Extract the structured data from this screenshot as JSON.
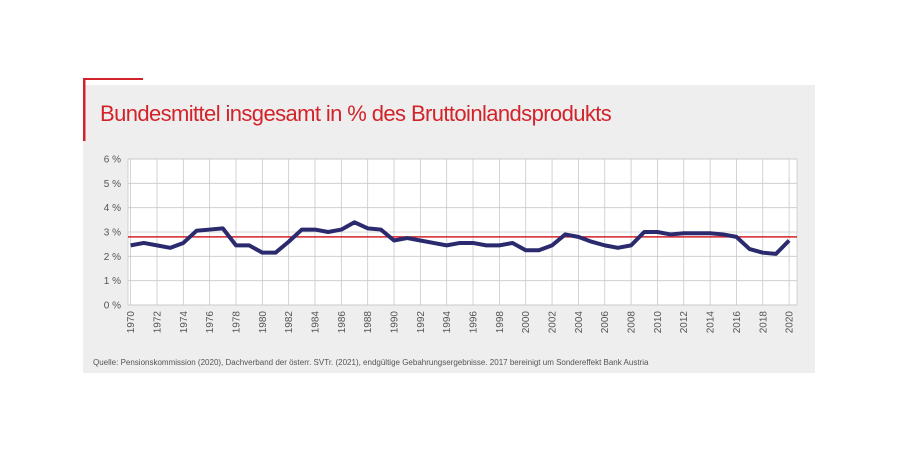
{
  "chart_data": {
    "type": "line",
    "title": "Bundesmittel insgesamt in % des Bruttoinlandsprodukts",
    "source": "Quelle: Pensionskommission (2020), Dachverband der österr. SVTr. (2021), endgültige Gebahrungsergebnisse. 2017 bereinigt um Sondereffekt Bank Austria",
    "x": [
      1970,
      1971,
      1972,
      1973,
      1974,
      1975,
      1976,
      1977,
      1978,
      1979,
      1980,
      1981,
      1982,
      1983,
      1984,
      1985,
      1986,
      1987,
      1988,
      1989,
      1990,
      1991,
      1992,
      1993,
      1994,
      1995,
      1996,
      1997,
      1998,
      1999,
      2000,
      2001,
      2002,
      2003,
      2004,
      2005,
      2006,
      2007,
      2008,
      2009,
      2010,
      2011,
      2012,
      2013,
      2014,
      2015,
      2016,
      2017,
      2018,
      2019,
      2020
    ],
    "series": [
      {
        "color": "#2b2a6e",
        "values": [
          2.45,
          2.55,
          2.45,
          2.35,
          2.55,
          3.05,
          3.1,
          3.15,
          2.45,
          2.45,
          2.15,
          2.15,
          2.6,
          3.1,
          3.1,
          3.0,
          3.1,
          3.4,
          3.15,
          3.1,
          2.65,
          2.75,
          2.65,
          2.55,
          2.45,
          2.55,
          2.55,
          2.45,
          2.45,
          2.55,
          2.25,
          2.25,
          2.45,
          2.9,
          2.8,
          2.6,
          2.45,
          2.35,
          2.45,
          3.0,
          3.0,
          2.9,
          2.95,
          2.95,
          2.95,
          2.9,
          2.8,
          2.3,
          2.15,
          2.1,
          2.65
        ]
      }
    ],
    "reference_line": {
      "value": 2.8,
      "color": "#d3232a"
    },
    "xlim": [
      1969.8,
      2020.6
    ],
    "xticks": [
      1970,
      1972,
      1974,
      1976,
      1978,
      1980,
      1982,
      1984,
      1986,
      1988,
      1990,
      1992,
      1994,
      1996,
      1998,
      2000,
      2002,
      2004,
      2006,
      2008,
      2010,
      2012,
      2014,
      2016,
      2018,
      2020
    ],
    "ylim": [
      0,
      6
    ],
    "yticks": [
      {
        "value": 0,
        "label": "0 %"
      },
      {
        "value": 1,
        "label": "1 %"
      },
      {
        "value": 2,
        "label": "2 %"
      },
      {
        "value": 3,
        "label": "3 %"
      },
      {
        "value": 4,
        "label": "4 %"
      },
      {
        "value": 5,
        "label": "5 %"
      },
      {
        "value": 6,
        "label": "6 %"
      }
    ],
    "grid": true
  }
}
